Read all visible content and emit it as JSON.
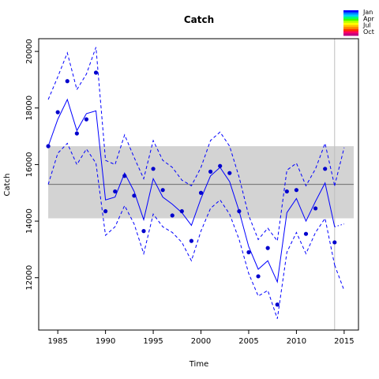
{
  "chart_data": {
    "type": "line",
    "title": "Catch",
    "xlabel": "Time",
    "ylabel": "Catch",
    "xlim": [
      1983,
      2016.5
    ],
    "ylim": [
      10150,
      20450
    ],
    "x_ticks": [
      1985,
      1990,
      1995,
      2000,
      2005,
      2010,
      2015
    ],
    "y_ticks": [
      12000,
      14000,
      16000,
      18000,
      20000
    ],
    "grid": false,
    "legend_position": "top-right",
    "legend": {
      "entries": [
        "Jan",
        "Apr",
        "Jul",
        "Oct"
      ],
      "colors": [
        "#0000ff",
        "#0080ff",
        "#00d0ff",
        "#00ff80",
        "#40ff00",
        "#c0ff00",
        "#ffff00",
        "#ffc000",
        "#ff8000",
        "#ff3000",
        "#ff0060",
        "#c00080"
      ]
    },
    "band": {
      "x": [
        1984,
        2016
      ],
      "ymin": 14100,
      "ymax": 16650,
      "color": "#d3d3d3"
    },
    "mean_line": {
      "y": 15300,
      "color": "#808080"
    },
    "vline": {
      "x": 2014,
      "color": "#bebebe"
    },
    "points": {
      "x": [
        1984,
        1985,
        1986,
        1987,
        1988,
        1989,
        1990,
        1991,
        1992,
        1993,
        1994,
        1995,
        1996,
        1997,
        1998,
        1999,
        2000,
        2001,
        2002,
        2003,
        2004,
        2005,
        2006,
        2007,
        2008,
        2009,
        2010,
        2011,
        2012,
        2013,
        2014
      ],
      "y": [
        16650,
        17850,
        18950,
        17100,
        17600,
        19250,
        14350,
        15050,
        15600,
        14900,
        13650,
        15850,
        15100,
        14200,
        14350,
        13300,
        15000,
        15750,
        15950,
        15700,
        14350,
        12900,
        12050,
        13050,
        11050,
        15050,
        15100,
        13550,
        14450,
        15850,
        13250
      ],
      "color": "#0000cd"
    },
    "series": [
      {
        "style": "solid",
        "color": "#0000ff",
        "x": [
          1984,
          1985,
          1986,
          1987,
          1988,
          1989,
          1990,
          1991,
          1992,
          1993,
          1994,
          1995,
          1996,
          1997,
          1998,
          1999,
          2000,
          2001,
          2002,
          2003,
          2004,
          2005,
          2006,
          2007,
          2008,
          2009,
          2010,
          2011,
          2012,
          2013,
          2014
        ],
        "values": [
          16650,
          17600,
          18300,
          17200,
          17800,
          17900,
          14750,
          14850,
          15700,
          15050,
          14050,
          15500,
          14850,
          14600,
          14300,
          13850,
          14800,
          15600,
          15900,
          15400,
          14350,
          13100,
          12300,
          12600,
          11850,
          14300,
          14800,
          14000,
          14700,
          15350,
          13800
        ]
      },
      {
        "style": "dashed",
        "color": "#0000ff",
        "x": [
          1984,
          1985,
          1986,
          1987,
          1988,
          1989,
          1990,
          1991,
          1992,
          1993,
          1994,
          1995,
          1996,
          1997,
          1998,
          1999,
          2000,
          2001,
          2002,
          2003,
          2004,
          2005,
          2006,
          2007,
          2008,
          2009,
          2010,
          2011,
          2012,
          2013,
          2014
        ],
        "values": [
          18300,
          19100,
          19950,
          18650,
          19200,
          20150,
          16150,
          16000,
          17050,
          16250,
          15500,
          16850,
          16150,
          15900,
          15450,
          15250,
          15900,
          16850,
          17150,
          16650,
          15550,
          14200,
          13350,
          13750,
          13300,
          15800,
          16050,
          15250,
          15850,
          16750,
          15250
        ]
      },
      {
        "style": "dashed",
        "color": "#0000ff",
        "x": [
          1984,
          1985,
          1986,
          1987,
          1988,
          1989,
          1990,
          1991,
          1992,
          1993,
          1994,
          1995,
          1996,
          1997,
          1998,
          1999,
          2000,
          2001,
          2002,
          2003,
          2004,
          2005,
          2006,
          2007,
          2008,
          2009,
          2010,
          2011,
          2012,
          2013,
          2014
        ],
        "values": [
          15300,
          16400,
          16750,
          16000,
          16550,
          16050,
          13500,
          13800,
          14550,
          13900,
          12850,
          14250,
          13800,
          13600,
          13250,
          12600,
          13650,
          14450,
          14750,
          14250,
          13350,
          12150,
          11350,
          11550,
          10550,
          12900,
          13600,
          12850,
          13600,
          14100,
          12450
        ]
      },
      {
        "style": "dashed",
        "color": "#0000ff",
        "x": [
          2014,
          2015
        ],
        "values": [
          15250,
          16600
        ]
      },
      {
        "style": "dashed",
        "color": "#0000ff",
        "x": [
          2014,
          2015
        ],
        "values": [
          12450,
          11550
        ]
      },
      {
        "style": "dotted",
        "color": "#0000ff",
        "x": [
          2014,
          2015
        ],
        "values": [
          13800,
          13900
        ]
      }
    ]
  }
}
